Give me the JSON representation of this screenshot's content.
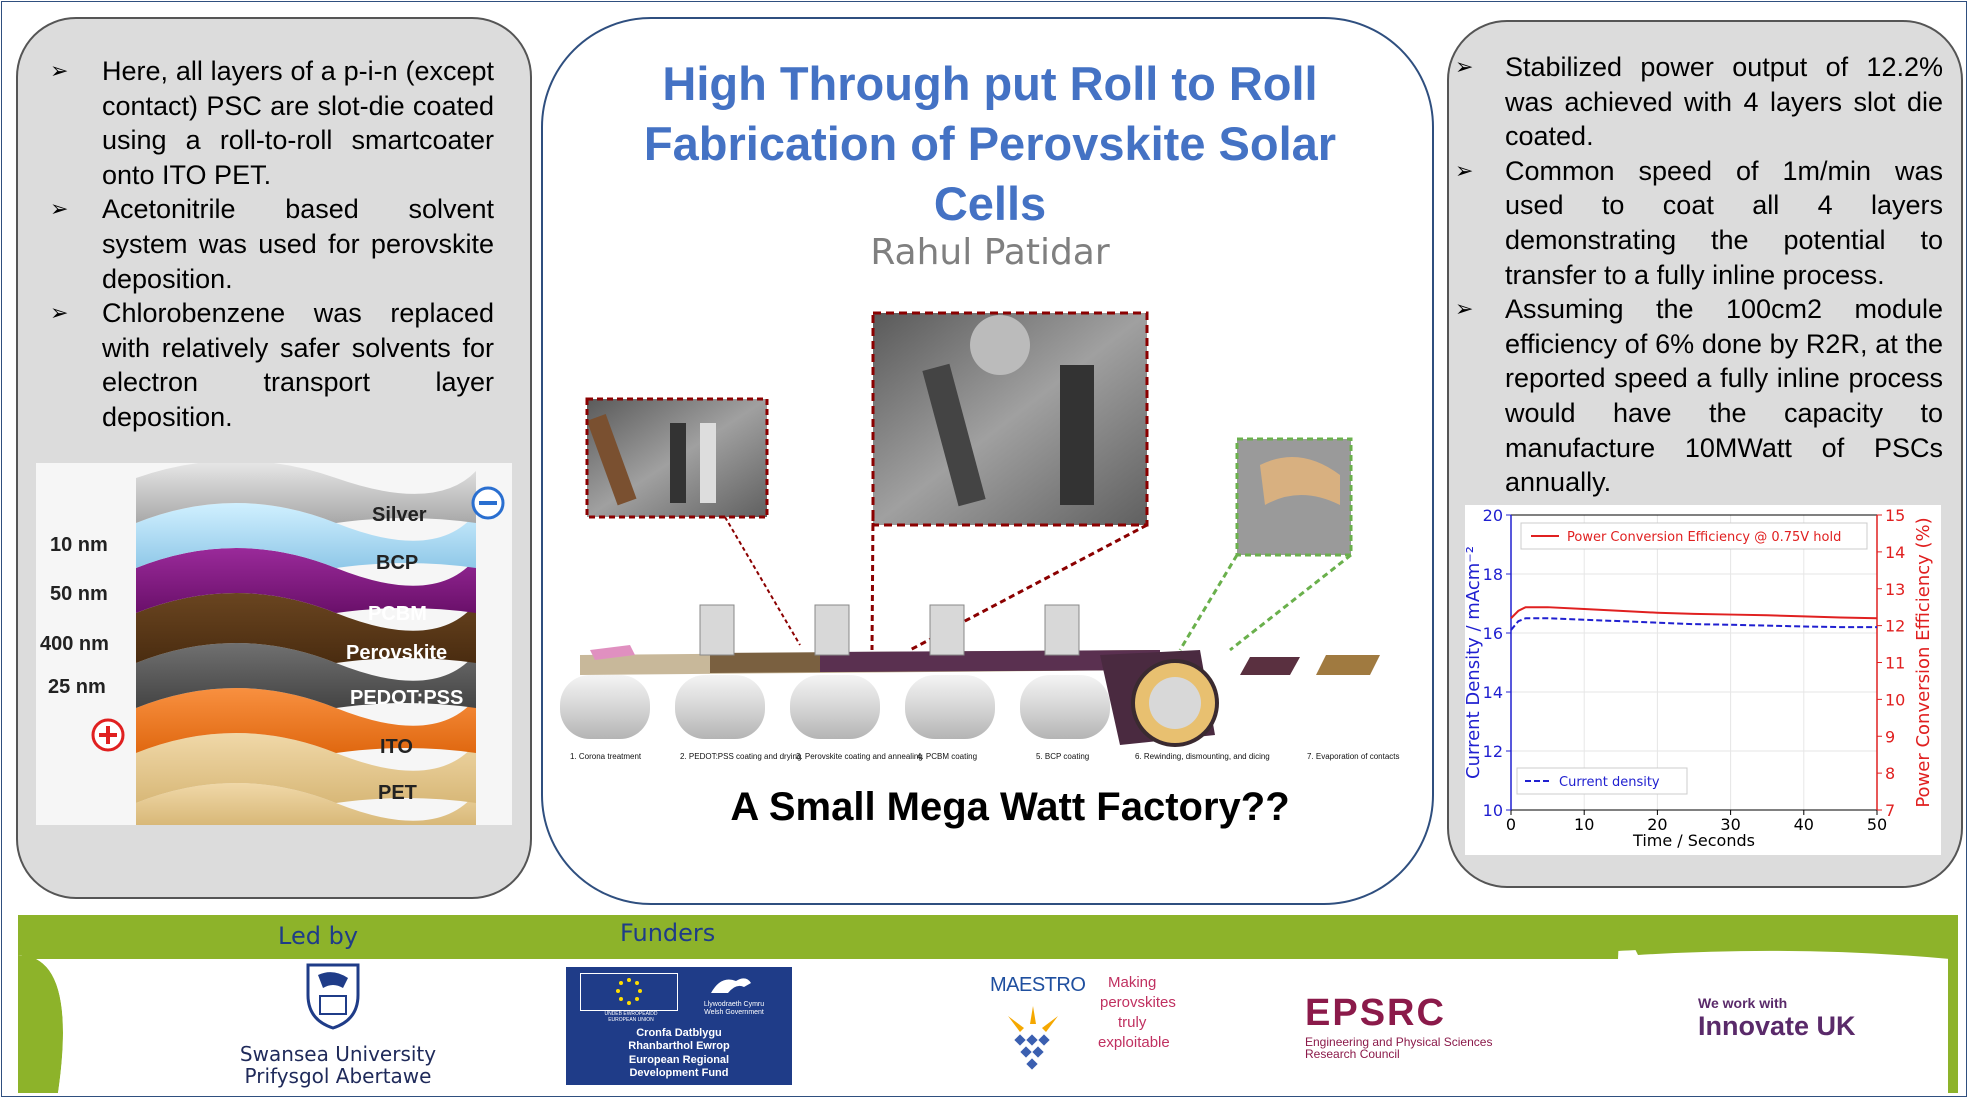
{
  "left_panel": {
    "bullets": [
      "Here, all layers of a p-i-n (except contact) PSC are slot-die coated using a roll-to-roll smartcoater onto ITO PET.",
      "Acetonitrile based solvent system was used for perovskite deposition.",
      "Chlorobenzene was replaced with relatively safer solvents for electron transport layer deposition."
    ],
    "stack": {
      "layers": [
        "Silver",
        "BCP",
        "PCBM",
        "Perovskite",
        "PEDOT:PSS",
        "ITO",
        "PET"
      ],
      "thicknesses": [
        "10 nm",
        "50 nm",
        "400 nm",
        "25 nm"
      ],
      "minus_symbol": "⊖",
      "plus_symbol": "⊕",
      "colors": {
        "silver": "#b8b8b8",
        "bcp": "#a8d8f0",
        "pcbm": "#7a1a7a",
        "perovskite": "#5a3818",
        "pedot": "#555555",
        "ito": "#f07820",
        "pet": "#e8c890"
      }
    }
  },
  "center_panel": {
    "title": "High Through put Roll to Roll Fabrication of Perovskite Solar Cells",
    "author": "Rahul Patidar",
    "subtitle": "A Small Mega Watt Factory??",
    "steps": [
      "1. Corona treatment",
      "2. PEDOT:PSS coating and drying",
      "3. Perovskite coating and annealing",
      "4. PCBM coating",
      "5. BCP coating",
      "6. Rewinding, dismounting, and dicing",
      "7. Evaporation of contacts"
    ],
    "colors": {
      "title": "#4472c4",
      "author": "#7f7f7f",
      "dark_red": "#8b0000",
      "green": "#6ab04c"
    }
  },
  "right_panel": {
    "bullets": [
      "Stabilized power output of 12.2% was achieved with 4 layers slot die coated.",
      "Common speed of 1m/min was used to coat all 4 layers demonstrating the potential to transfer to a fully inline process.",
      "Assuming the 100cm2 module efficiency of 6% done by R2R, at the reported speed a fully inline process would have the capacity to manufacture 10MWatt of PSCs annually."
    ]
  },
  "chart_data": {
    "type": "line",
    "x": [
      0,
      1,
      2,
      3,
      5,
      10,
      15,
      20,
      25,
      30,
      35,
      40,
      45,
      50
    ],
    "xlabel": "Time / Seconds",
    "xlim": [
      0,
      50
    ],
    "xticks": [
      "0",
      "10",
      "20",
      "30",
      "40",
      "50"
    ],
    "ylabel": "Current Density / mAcm⁻²",
    "ylim": [
      10,
      20
    ],
    "yticks": [
      "10",
      "12",
      "14",
      "16",
      "18",
      "20"
    ],
    "y2label": "Power Conversion Efficiency (%)",
    "y2lim": [
      7,
      15
    ],
    "y2ticks": [
      "7",
      "8",
      "9",
      "10",
      "11",
      "12",
      "13",
      "14",
      "15"
    ],
    "series": [
      {
        "name": "Power Conversion Efficiency @ 0.75V hold",
        "axis": "right",
        "color": "#e02020",
        "values": [
          12.2,
          12.4,
          12.5,
          12.5,
          12.5,
          12.45,
          12.4,
          12.35,
          12.32,
          12.3,
          12.28,
          12.25,
          12.22,
          12.2
        ]
      },
      {
        "name": "Current density",
        "axis": "left",
        "color": "#2020d0",
        "values": [
          16.1,
          16.4,
          16.5,
          16.5,
          16.5,
          16.45,
          16.4,
          16.35,
          16.3,
          16.28,
          16.25,
          16.22,
          16.2,
          16.2
        ]
      }
    ],
    "legend_position": "top-right / bottom-left",
    "grid": true
  },
  "footer": {
    "led_by": "Led by",
    "funders": "Funders",
    "swansea_line1": "Swansea University",
    "swansea_line2": "Prifysgol Abertawe",
    "eu_text1": "UNDEB EWROPEAIDD",
    "eu_text2": "EUROPEAN UNION",
    "wales_text1": "Llywodraeth Cymru",
    "wales_text2": "Welsh Government",
    "eu_fund_lines": [
      "Cronfa Datblygu",
      "Rhanbarthol Ewrop",
      "European Regional",
      "Development Fund"
    ],
    "maestro": "MAESTRO",
    "maestro_tag": [
      "Making",
      "perovskites",
      "truly",
      "exploitable"
    ],
    "epsrc": "EPSRC",
    "epsrc_sub1": "Engineering and Physical Sciences",
    "epsrc_sub2": "Research Council",
    "innovate_small": "We work with",
    "innovate_big": "Innovate UK",
    "colors": {
      "green": "#8db32a",
      "navy": "#1f3c88",
      "epsrc": "#8b1a4a",
      "innovate": "#5a2a6a"
    }
  }
}
